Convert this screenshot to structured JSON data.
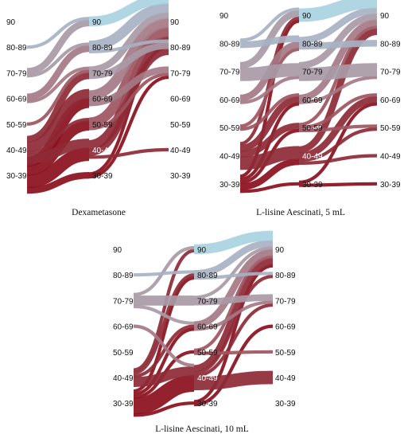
{
  "categories": [
    "90",
    "80-89",
    "70-79",
    "60-69",
    "50-59",
    "40-49",
    "30-39"
  ],
  "colors": {
    "90": "#a9d3e1",
    "80-89": "#a7b2c3",
    "70-79": "#a89aa6",
    "60-69": "#a47a86",
    "50-59": "#9e5560",
    "40-49": "#8d2a36",
    "30-39": "#8a0f1c"
  },
  "panels": [
    {
      "caption": "Dexametasone",
      "left_labels": [
        "90",
        "80-89",
        "70-79",
        "60-69",
        "50-59",
        "40-49",
        "30-39"
      ],
      "mid_labels": [
        "90",
        "80-89",
        "70-79",
        "60-69",
        "50-59",
        "40-49",
        "30-39"
      ],
      "right_labels": [
        "90",
        "80-89",
        "70-79",
        "60-69",
        "50-59",
        "40-49",
        "30-39"
      ],
      "flows_left_mid": [
        {
          "from": "80-89",
          "to": "90",
          "value": 1
        },
        {
          "from": "70-79",
          "to": "90",
          "value": 2
        },
        {
          "from": "70-79",
          "to": "80-89",
          "value": 1
        },
        {
          "from": "60-69",
          "to": "80-89",
          "value": 2
        },
        {
          "from": "60-69",
          "to": "70-79",
          "value": 1
        },
        {
          "from": "50-59",
          "to": "70-79",
          "value": 1
        },
        {
          "from": "40-49",
          "to": "70-79",
          "value": 2
        },
        {
          "from": "40-49",
          "to": "60-69",
          "value": 3
        },
        {
          "from": "40-49",
          "to": "50-59",
          "value": 1
        },
        {
          "from": "40-49",
          "to": "40-49",
          "value": 3
        },
        {
          "from": "30-39",
          "to": "60-69",
          "value": 3
        },
        {
          "from": "30-39",
          "to": "50-59",
          "value": 3
        },
        {
          "from": "30-39",
          "to": "40-49",
          "value": 4
        },
        {
          "from": "30-39",
          "to": "30-39",
          "value": 2
        }
      ],
      "flows_mid_right": [
        {
          "from": "90",
          "to": "90",
          "value": 3
        },
        {
          "from": "80-89",
          "to": "90",
          "value": 3
        },
        {
          "from": "80-89",
          "to": "80-89",
          "value": 1
        },
        {
          "from": "70-79",
          "to": "90",
          "value": 2
        },
        {
          "from": "70-79",
          "to": "80-89",
          "value": 2
        },
        {
          "from": "60-69",
          "to": "90",
          "value": 3
        },
        {
          "from": "60-69",
          "to": "70-79",
          "value": 2
        },
        {
          "from": "50-59",
          "to": "90",
          "value": 3
        },
        {
          "from": "50-59",
          "to": "70-79",
          "value": 1
        },
        {
          "from": "40-49",
          "to": "90",
          "value": 3
        },
        {
          "from": "40-49",
          "to": "80-89",
          "value": 2
        },
        {
          "from": "40-49",
          "to": "40-49",
          "value": 1
        },
        {
          "from": "30-39",
          "to": "90",
          "value": 1
        },
        {
          "from": "30-39",
          "to": "70-79",
          "value": 1
        }
      ]
    },
    {
      "caption": "L-lisine Aescinati, 5 mL",
      "left_labels": [
        "90",
        "80-89",
        "70-79",
        "60-69",
        "50-59",
        "40-49",
        "30-39"
      ],
      "mid_labels": [
        "90",
        "80-89",
        "70-79",
        "60-69",
        "50-59",
        "40-49",
        "30-39"
      ],
      "right_labels": [
        "90",
        "80-89",
        "70-79",
        "60-69",
        "50-59",
        "40-49",
        "30-39"
      ],
      "flows_left_mid": [
        {
          "from": "80-89",
          "to": "90",
          "value": 1
        },
        {
          "from": "80-89",
          "to": "80-89",
          "value": 2
        },
        {
          "from": "70-79",
          "to": "90",
          "value": 2
        },
        {
          "from": "70-79",
          "to": "70-79",
          "value": 4
        },
        {
          "from": "60-69",
          "to": "80-89",
          "value": 2
        },
        {
          "from": "60-69",
          "to": "70-79",
          "value": 1
        },
        {
          "from": "50-59",
          "to": "80-89",
          "value": 1
        },
        {
          "from": "50-59",
          "to": "60-69",
          "value": 1
        },
        {
          "from": "40-49",
          "to": "90",
          "value": 1
        },
        {
          "from": "40-49",
          "to": "60-69",
          "value": 2
        },
        {
          "from": "40-49",
          "to": "50-59",
          "value": 2
        },
        {
          "from": "40-49",
          "to": "40-49",
          "value": 4
        },
        {
          "from": "30-39",
          "to": "90",
          "value": 1
        },
        {
          "from": "30-39",
          "to": "60-69",
          "value": 1
        },
        {
          "from": "30-39",
          "to": "50-59",
          "value": 1
        },
        {
          "from": "30-39",
          "to": "40-49",
          "value": 2
        },
        {
          "from": "30-39",
          "to": "30-39",
          "value": 1
        }
      ],
      "flows_mid_right": [
        {
          "from": "90",
          "to": "90",
          "value": 4
        },
        {
          "from": "80-89",
          "to": "90",
          "value": 2
        },
        {
          "from": "80-89",
          "to": "80-89",
          "value": 2
        },
        {
          "from": "70-79",
          "to": "90",
          "value": 2
        },
        {
          "from": "70-79",
          "to": "70-79",
          "value": 4
        },
        {
          "from": "60-69",
          "to": "90",
          "value": 2
        },
        {
          "from": "60-69",
          "to": "70-79",
          "value": 1
        },
        {
          "from": "50-59",
          "to": "90",
          "value": 1
        },
        {
          "from": "50-59",
          "to": "60-69",
          "value": 1
        },
        {
          "from": "50-59",
          "to": "50-59",
          "value": 1
        },
        {
          "from": "40-49",
          "to": "90",
          "value": 2
        },
        {
          "from": "40-49",
          "to": "60-69",
          "value": 2
        },
        {
          "from": "40-49",
          "to": "50-59",
          "value": 1
        },
        {
          "from": "40-49",
          "to": "40-49",
          "value": 1
        },
        {
          "from": "30-39",
          "to": "60-69",
          "value": 1
        },
        {
          "from": "30-39",
          "to": "30-39",
          "value": 1
        }
      ]
    },
    {
      "caption": "L-lisine Aescinati, 10 mL",
      "left_labels": [
        "90",
        "80-89",
        "70-79",
        "60-69",
        "50-59",
        "40-49",
        "30-39"
      ],
      "mid_labels": [
        "90",
        "80-89",
        "70-79",
        "60-69",
        "50-59",
        "40-49",
        "30-39"
      ],
      "right_labels": [
        "90",
        "80-89",
        "70-79",
        "60-69",
        "50-59",
        "40-49",
        "30-39"
      ],
      "flows_left_mid": [
        {
          "from": "80-89",
          "to": "80-89",
          "value": 1
        },
        {
          "from": "70-79",
          "to": "90",
          "value": 1
        },
        {
          "from": "70-79",
          "to": "70-79",
          "value": 3
        },
        {
          "from": "70-79",
          "to": "60-69",
          "value": 1
        },
        {
          "from": "60-69",
          "to": "40-49",
          "value": 1
        },
        {
          "from": "40-49",
          "to": "90",
          "value": 1
        },
        {
          "from": "40-49",
          "to": "80-89",
          "value": 1
        },
        {
          "from": "40-49",
          "to": "60-69",
          "value": 1
        },
        {
          "from": "40-49",
          "to": "40-49",
          "value": 3
        },
        {
          "from": "30-39",
          "to": "80-89",
          "value": 1
        },
        {
          "from": "30-39",
          "to": "60-69",
          "value": 1
        },
        {
          "from": "30-39",
          "to": "50-59",
          "value": 1
        },
        {
          "from": "30-39",
          "to": "40-49",
          "value": 5
        },
        {
          "from": "30-39",
          "to": "30-39",
          "value": 1
        }
      ],
      "flows_mid_right": [
        {
          "from": "90",
          "to": "90",
          "value": 3
        },
        {
          "from": "80-89",
          "to": "90",
          "value": 2
        },
        {
          "from": "80-89",
          "to": "80-89",
          "value": 1
        },
        {
          "from": "70-79",
          "to": "90",
          "value": 1
        },
        {
          "from": "70-79",
          "to": "70-79",
          "value": 2
        },
        {
          "from": "60-69",
          "to": "90",
          "value": 2
        },
        {
          "from": "60-69",
          "to": "70-79",
          "value": 1
        },
        {
          "from": "50-59",
          "to": "90",
          "value": 1
        },
        {
          "from": "50-59",
          "to": "50-59",
          "value": 1
        },
        {
          "from": "40-49",
          "to": "90",
          "value": 2
        },
        {
          "from": "40-49",
          "to": "80-89",
          "value": 1
        },
        {
          "from": "40-49",
          "to": "70-79",
          "value": 1
        },
        {
          "from": "40-49",
          "to": "40-49",
          "value": 4
        },
        {
          "from": "30-39",
          "to": "90",
          "value": 1
        },
        {
          "from": "30-39",
          "to": "60-69",
          "value": 1
        }
      ]
    }
  ]
}
